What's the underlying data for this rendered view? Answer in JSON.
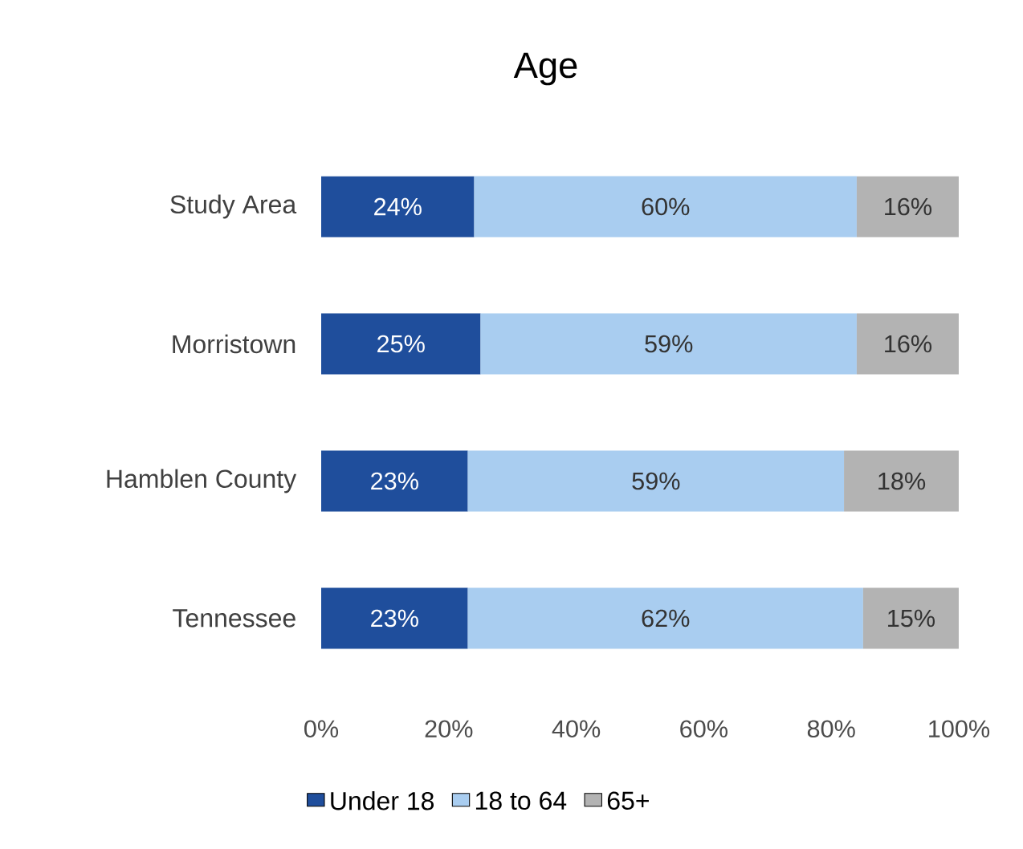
{
  "chart_data": {
    "type": "bar",
    "orientation": "horizontal",
    "stacked": true,
    "title": "Age",
    "categories": [
      "Study Area",
      "Morristown",
      "Hamblen County",
      "Tennessee"
    ],
    "series": [
      {
        "name": "Under 18",
        "color": "#1f4e9c",
        "values": [
          24,
          25,
          23,
          23
        ],
        "value_labels": [
          "24%",
          "25%",
          "23%",
          "23%"
        ]
      },
      {
        "name": "18 to 64",
        "color": "#a9cdf0",
        "values": [
          60,
          59,
          59,
          62
        ],
        "value_labels": [
          "60%",
          "59%",
          "59%",
          "62%"
        ]
      },
      {
        "name": "65+",
        "color": "#b3b3b3",
        "values": [
          16,
          16,
          18,
          15
        ],
        "value_labels": [
          "16%",
          "16%",
          "18%",
          "15%"
        ]
      }
    ],
    "xlim": [
      0,
      100
    ],
    "xticks": [
      {
        "value": 0,
        "label": "0%"
      },
      {
        "value": 20,
        "label": "20%"
      },
      {
        "value": 40,
        "label": "40%"
      },
      {
        "value": 60,
        "label": "60%"
      },
      {
        "value": 80,
        "label": "80%"
      },
      {
        "value": 100,
        "label": "100%"
      }
    ],
    "legend": "bottom",
    "grid": false
  }
}
